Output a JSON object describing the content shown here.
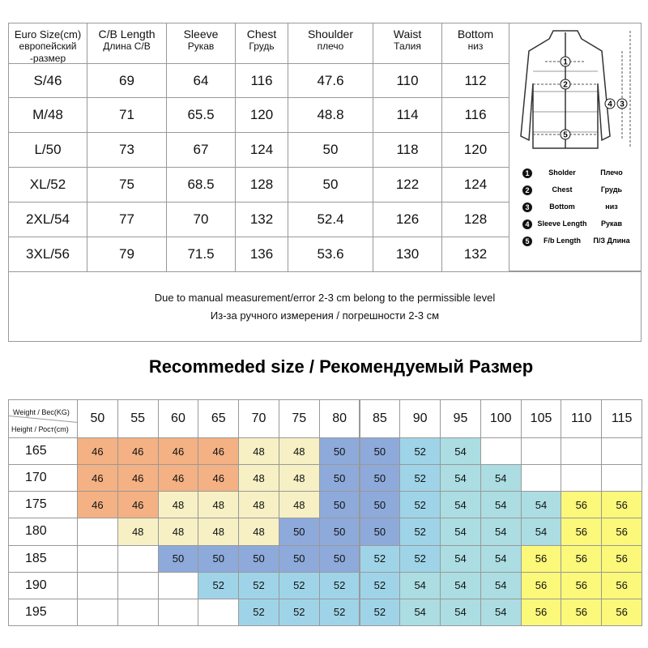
{
  "size_table": {
    "headers": [
      [
        "Euro Size(cm)",
        "европейский",
        "-размер"
      ],
      [
        "C/B Length",
        "Длина С/В"
      ],
      [
        "Sleeve",
        "Рукав"
      ],
      [
        "Chest",
        "Грудь"
      ],
      [
        "Shoulder",
        "плечо"
      ],
      [
        "Waist",
        "Талия"
      ],
      [
        "Bottom",
        "низ"
      ]
    ],
    "rows": [
      [
        "S/46",
        69,
        64,
        116,
        47.6,
        110,
        112
      ],
      [
        "M/48",
        71,
        65.5,
        120,
        48.8,
        114,
        116
      ],
      [
        "L/50",
        73,
        67,
        124,
        50,
        118,
        120
      ],
      [
        "XL/52",
        75,
        68.5,
        128,
        50,
        122,
        124
      ],
      [
        "2XL/54",
        77,
        70,
        132,
        52.4,
        126,
        128
      ],
      [
        "3XL/56",
        79,
        71.5,
        136,
        53.6,
        130,
        132
      ]
    ],
    "note": [
      "Due to manual measurement/error 2-3 cm belong to the permissible level",
      "Из-за ручного измерения / погрешности 2-3 см"
    ]
  },
  "legend": [
    {
      "num": "1",
      "label": "Sholder",
      "label_ru": "Плечо"
    },
    {
      "num": "2",
      "label": "Chest",
      "label_ru": "Грудь"
    },
    {
      "num": "3",
      "label": "Bottom",
      "label_ru": "низ"
    },
    {
      "num": "4",
      "label": "Sleeve Length",
      "label_ru": "Рукав"
    },
    {
      "num": "5",
      "label": "F/b Length",
      "label_ru": "П/З Длина"
    }
  ],
  "recommend": {
    "title": "Recommeded size / Рекомендуемый Размер",
    "weight_label": "Weight / Вес(KG)",
    "height_label": "Height / Рост(cm)",
    "weights": [
      50,
      55,
      60,
      65,
      70,
      75,
      80,
      85,
      90,
      95,
      100,
      105,
      110,
      115
    ],
    "heights": [
      165,
      170,
      175,
      180,
      185,
      190,
      195
    ],
    "grid": [
      [
        46,
        46,
        46,
        46,
        48,
        48,
        50,
        50,
        52,
        54,
        null,
        null,
        null,
        null
      ],
      [
        46,
        46,
        46,
        46,
        48,
        48,
        50,
        50,
        52,
        54,
        54,
        null,
        null,
        null
      ],
      [
        46,
        46,
        48,
        48,
        48,
        48,
        50,
        50,
        52,
        54,
        54,
        54,
        56,
        56
      ],
      [
        null,
        48,
        48,
        48,
        48,
        50,
        50,
        50,
        52,
        54,
        54,
        54,
        56,
        56
      ],
      [
        null,
        null,
        50,
        50,
        50,
        50,
        50,
        52,
        52,
        54,
        54,
        56,
        56,
        56
      ],
      [
        null,
        null,
        null,
        52,
        52,
        52,
        52,
        52,
        54,
        54,
        54,
        56,
        56,
        56
      ],
      [
        null,
        null,
        null,
        null,
        52,
        52,
        52,
        52,
        54,
        54,
        54,
        56,
        56,
        56
      ]
    ],
    "size_colors": {
      "46": "#f4b183",
      "48": "#f6f0c4",
      "50": "#8eaadb",
      "52": "#9fd4e8",
      "54": "#abdde2",
      "56": "#fbf87a"
    }
  }
}
